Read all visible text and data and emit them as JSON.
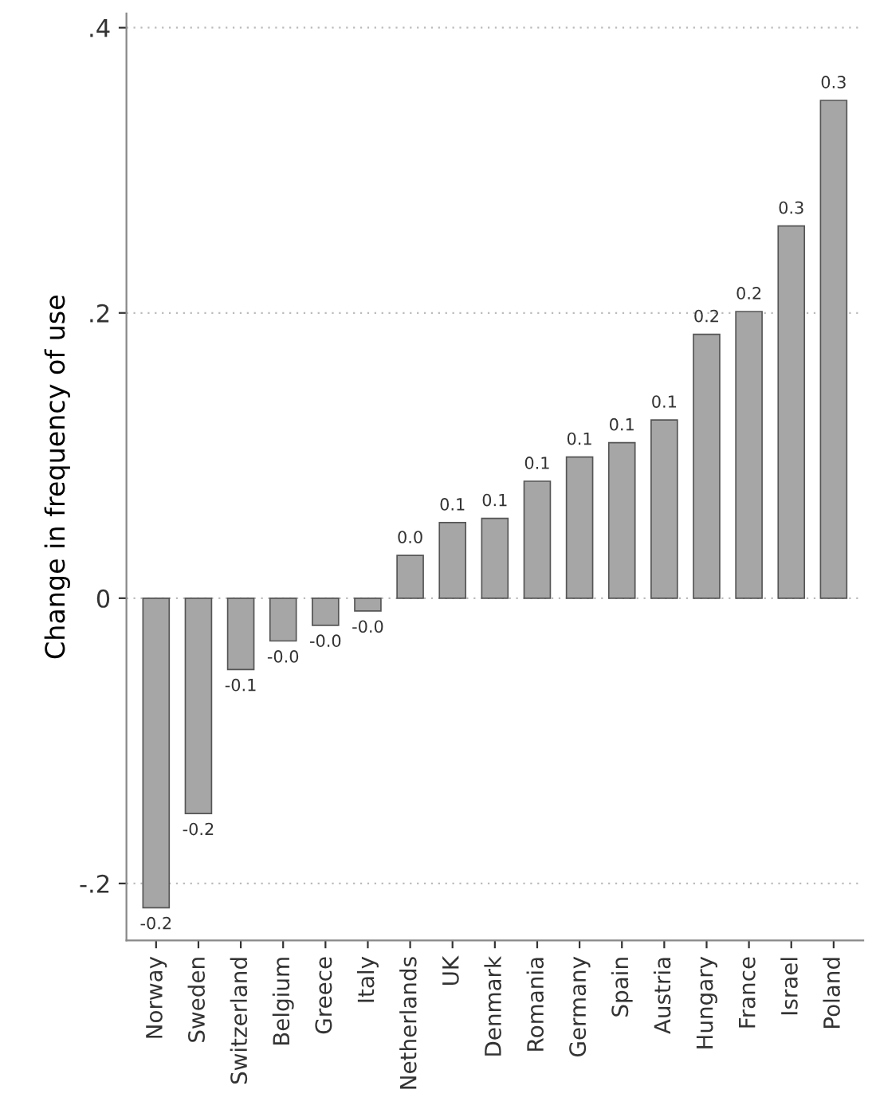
{
  "chart_data": {
    "type": "bar",
    "ylabel": "Change in frequency of use",
    "categories": [
      "Norway",
      "Sweden",
      "Switzerland",
      "Belgium",
      "Greece",
      "Italy",
      "Netherlands",
      "UK",
      "Denmark",
      "Romania",
      "Germany",
      "Spain",
      "Austria",
      "Hungary",
      "France",
      "Israel",
      "Poland"
    ],
    "values": [
      -0.217,
      -0.151,
      -0.05,
      -0.03,
      -0.019,
      -0.009,
      0.03,
      0.053,
      0.056,
      0.082,
      0.099,
      0.109,
      0.125,
      0.185,
      0.201,
      0.261,
      0.349
    ],
    "value_labels": [
      "-0.2",
      "-0.2",
      "-0.1",
      "-0.0",
      "-0.0",
      "-0.0",
      "0.0",
      "0.1",
      "0.1",
      "0.1",
      "0.1",
      "0.1",
      "0.1",
      "0.2",
      "0.2",
      "0.3",
      "0.3"
    ],
    "color": "#a6a6a6",
    "ylim": [
      -0.24,
      0.41
    ],
    "yticks": [
      {
        "value": -0.2,
        "label": "-.2"
      },
      {
        "value": 0,
        "label": "0"
      },
      {
        "value": 0.2,
        "label": ".2"
      },
      {
        "value": 0.4,
        "label": ".4"
      }
    ],
    "grid": "y"
  }
}
